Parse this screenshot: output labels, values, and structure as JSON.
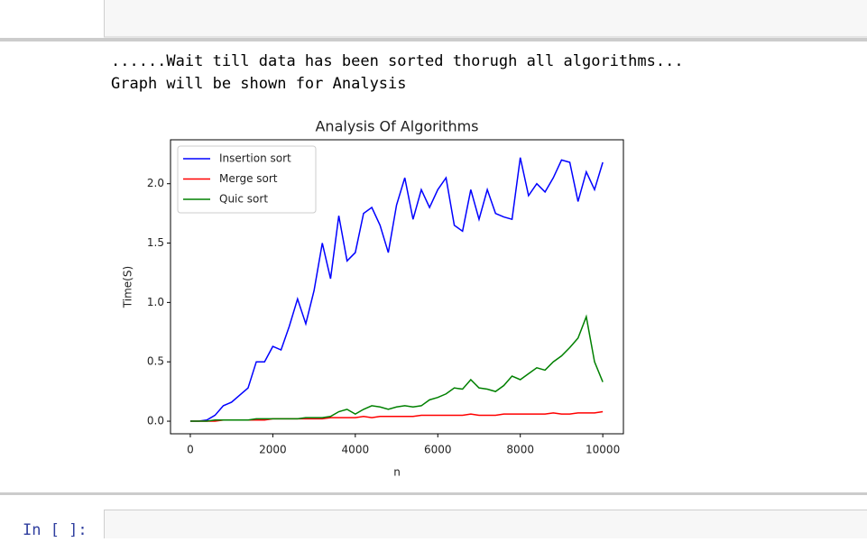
{
  "output_lines": [
    "......Wait till data has been sorted thorugh all algorithms...",
    "Graph will be shown for Analysis"
  ],
  "prompt": "In [ ]:",
  "chart_data": {
    "type": "line",
    "title": "Analysis Of Algorithms",
    "x_label": "n",
    "y_label": "Time(S)",
    "x": [
      0,
      200,
      400,
      600,
      800,
      1000,
      1200,
      1400,
      1600,
      1800,
      2000,
      2200,
      2400,
      2600,
      2800,
      3000,
      3200,
      3400,
      3600,
      3800,
      4000,
      4200,
      4400,
      4600,
      4800,
      5000,
      5200,
      5400,
      5600,
      5800,
      6000,
      6200,
      6400,
      6600,
      6800,
      7000,
      7200,
      7400,
      7600,
      7800,
      8000,
      8200,
      8400,
      8600,
      8800,
      9000,
      9200,
      9400,
      9600,
      9800,
      10000
    ],
    "series": [
      {
        "name": "Insertion sort",
        "color": "#0000ff",
        "values": [
          0,
          0,
          0.01,
          0.05,
          0.13,
          0.16,
          0.22,
          0.28,
          0.5,
          0.5,
          0.63,
          0.6,
          0.8,
          1.03,
          0.82,
          1.1,
          1.5,
          1.2,
          1.73,
          1.35,
          1.42,
          1.75,
          1.8,
          1.65,
          1.42,
          1.82,
          2.05,
          1.7,
          1.95,
          1.8,
          1.95,
          2.05,
          1.65,
          1.6,
          1.95,
          1.7,
          1.95,
          1.75,
          1.72,
          1.7,
          2.22,
          1.9,
          2.0,
          1.93,
          2.05,
          2.2,
          2.18,
          1.85,
          2.1,
          1.95,
          2.18
        ]
      },
      {
        "name": "Merge sort",
        "color": "#ff0000",
        "values": [
          0,
          0,
          0,
          0,
          0.01,
          0.01,
          0.01,
          0.01,
          0.01,
          0.01,
          0.02,
          0.02,
          0.02,
          0.02,
          0.02,
          0.02,
          0.02,
          0.03,
          0.03,
          0.03,
          0.03,
          0.04,
          0.03,
          0.04,
          0.04,
          0.04,
          0.04,
          0.04,
          0.05,
          0.05,
          0.05,
          0.05,
          0.05,
          0.05,
          0.06,
          0.05,
          0.05,
          0.05,
          0.06,
          0.06,
          0.06,
          0.06,
          0.06,
          0.06,
          0.07,
          0.06,
          0.06,
          0.07,
          0.07,
          0.07,
          0.08
        ]
      },
      {
        "name": "Quic sort",
        "color": "#008000",
        "values": [
          0,
          0,
          0,
          0.01,
          0.01,
          0.01,
          0.01,
          0.01,
          0.02,
          0.02,
          0.02,
          0.02,
          0.02,
          0.02,
          0.03,
          0.03,
          0.03,
          0.04,
          0.08,
          0.1,
          0.06,
          0.1,
          0.13,
          0.12,
          0.1,
          0.12,
          0.13,
          0.12,
          0.13,
          0.18,
          0.2,
          0.23,
          0.28,
          0.27,
          0.35,
          0.28,
          0.27,
          0.25,
          0.3,
          0.38,
          0.35,
          0.4,
          0.45,
          0.43,
          0.5,
          0.55,
          0.62,
          0.7,
          0.88,
          0.5,
          0.33
        ]
      }
    ],
    "xlim": [
      -480,
      10500
    ],
    "ylim": [
      -0.106,
      2.37
    ],
    "xticks": [
      0,
      2000,
      4000,
      6000,
      8000,
      10000
    ],
    "yticks": [
      {
        "value": 0,
        "label": "0.0"
      },
      0.5,
      {
        "value": 1,
        "label": "1.0"
      },
      1.5,
      {
        "value": 2,
        "label": "2.0"
      }
    ],
    "legend": "upper left",
    "grid": false
  }
}
